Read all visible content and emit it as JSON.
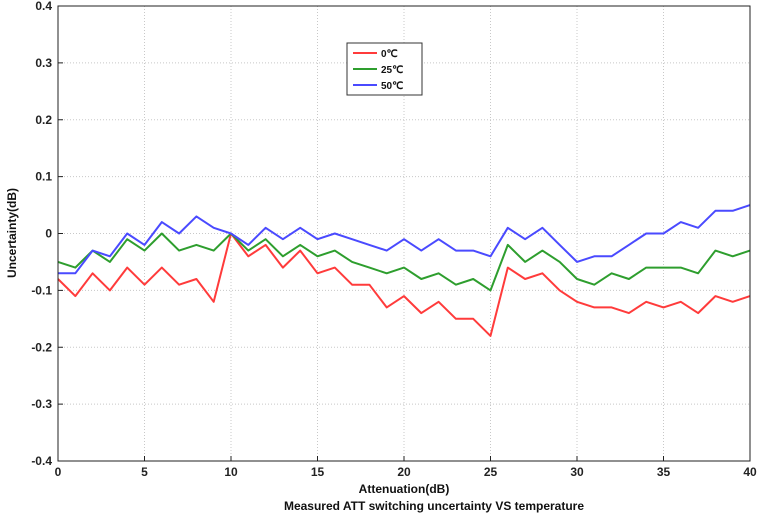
{
  "chart_data": {
    "type": "line",
    "title": "Measured ATT switching uncertainty VS temperature",
    "xlabel": "Attenuation(dB)",
    "ylabel": "Uncertainty(dB)",
    "xlim": [
      0,
      40
    ],
    "ylim": [
      -0.4,
      0.4
    ],
    "x_ticks": [
      0,
      5,
      10,
      15,
      20,
      25,
      30,
      35,
      40
    ],
    "y_ticks": [
      -0.4,
      -0.3,
      -0.2,
      -0.1,
      0,
      0.1,
      0.2,
      0.3,
      0.4
    ],
    "y_tick_labels": [
      "-0.4",
      "-0.3",
      "-0.2",
      "-0.1",
      "0",
      "0.1",
      "0.2",
      "0.3",
      "0.4"
    ],
    "grid": "dotted",
    "legend_position": "top-center",
    "x": [
      0,
      1,
      2,
      3,
      4,
      5,
      6,
      7,
      8,
      9,
      10,
      11,
      12,
      13,
      14,
      15,
      16,
      17,
      18,
      19,
      20,
      21,
      22,
      23,
      24,
      25,
      26,
      27,
      28,
      29,
      30,
      31,
      32,
      33,
      34,
      35,
      36,
      37,
      38,
      39,
      40
    ],
    "series": [
      {
        "name": "0℃",
        "color": "#ff3b3b",
        "values": [
          -0.08,
          -0.11,
          -0.07,
          -0.1,
          -0.06,
          -0.09,
          -0.06,
          -0.09,
          -0.08,
          -0.12,
          0.0,
          -0.04,
          -0.02,
          -0.06,
          -0.03,
          -0.07,
          -0.06,
          -0.09,
          -0.09,
          -0.13,
          -0.11,
          -0.14,
          -0.12,
          -0.15,
          -0.15,
          -0.18,
          -0.06,
          -0.08,
          -0.07,
          -0.1,
          -0.12,
          -0.13,
          -0.13,
          -0.14,
          -0.12,
          -0.13,
          -0.12,
          -0.14,
          -0.11,
          -0.12,
          -0.11
        ]
      },
      {
        "name": "25℃",
        "color": "#2e9e2e",
        "values": [
          -0.05,
          -0.06,
          -0.03,
          -0.05,
          -0.01,
          -0.03,
          0.0,
          -0.03,
          -0.02,
          -0.03,
          0.0,
          -0.03,
          -0.01,
          -0.04,
          -0.02,
          -0.04,
          -0.03,
          -0.05,
          -0.06,
          -0.07,
          -0.06,
          -0.08,
          -0.07,
          -0.09,
          -0.08,
          -0.1,
          -0.02,
          -0.05,
          -0.03,
          -0.05,
          -0.08,
          -0.09,
          -0.07,
          -0.08,
          -0.06,
          -0.06,
          -0.06,
          -0.07,
          -0.03,
          -0.04,
          -0.03
        ]
      },
      {
        "name": "50℃",
        "color": "#4a4aff",
        "values": [
          -0.07,
          -0.07,
          -0.03,
          -0.04,
          0.0,
          -0.02,
          0.02,
          0.0,
          0.03,
          0.01,
          0.0,
          -0.02,
          0.01,
          -0.01,
          0.01,
          -0.01,
          0.0,
          -0.01,
          -0.02,
          -0.03,
          -0.01,
          -0.03,
          -0.01,
          -0.03,
          -0.03,
          -0.04,
          0.01,
          -0.01,
          0.01,
          -0.02,
          -0.05,
          -0.04,
          -0.04,
          -0.02,
          0.0,
          0.0,
          0.02,
          0.01,
          0.04,
          0.04,
          0.05
        ]
      }
    ]
  }
}
